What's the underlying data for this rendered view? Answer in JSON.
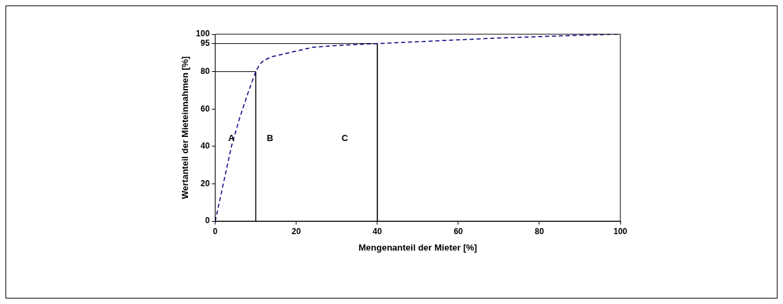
{
  "chart_data": {
    "type": "line",
    "xlabel": "Mengenanteil der Mieter [%]",
    "ylabel": "Wertanteil der Mieteinnahmen [%]",
    "xlim": [
      0,
      100
    ],
    "ylim": [
      0,
      100
    ],
    "xticks": [
      0,
      20,
      40,
      60,
      80,
      100
    ],
    "yticks": [
      0,
      20,
      40,
      60,
      80,
      95,
      100
    ],
    "series": [
      {
        "color": "#000080",
        "line_style": "dashed",
        "x": [
          0,
          2,
          4,
          6,
          8,
          10,
          11,
          12,
          14,
          17,
          20,
          24,
          30,
          40,
          50,
          60,
          70,
          80,
          90,
          100
        ],
        "values": [
          0,
          20,
          40,
          55,
          68,
          80,
          84,
          86,
          88,
          89.5,
          91,
          93,
          94,
          95,
          96,
          97,
          98,
          98.7,
          99.5,
          100
        ]
      },
      {
        "color": "#000000",
        "line_style": "solid",
        "x": [
          0,
          10,
          10
        ],
        "values": [
          80,
          80,
          0
        ]
      },
      {
        "color": "#000000",
        "line_style": "solid",
        "x": [
          0,
          40,
          40
        ],
        "values": [
          95,
          95,
          0
        ]
      }
    ],
    "annotations": [
      "A",
      "B",
      "C"
    ],
    "grid": false,
    "legend": false,
    "marker": "none"
  }
}
